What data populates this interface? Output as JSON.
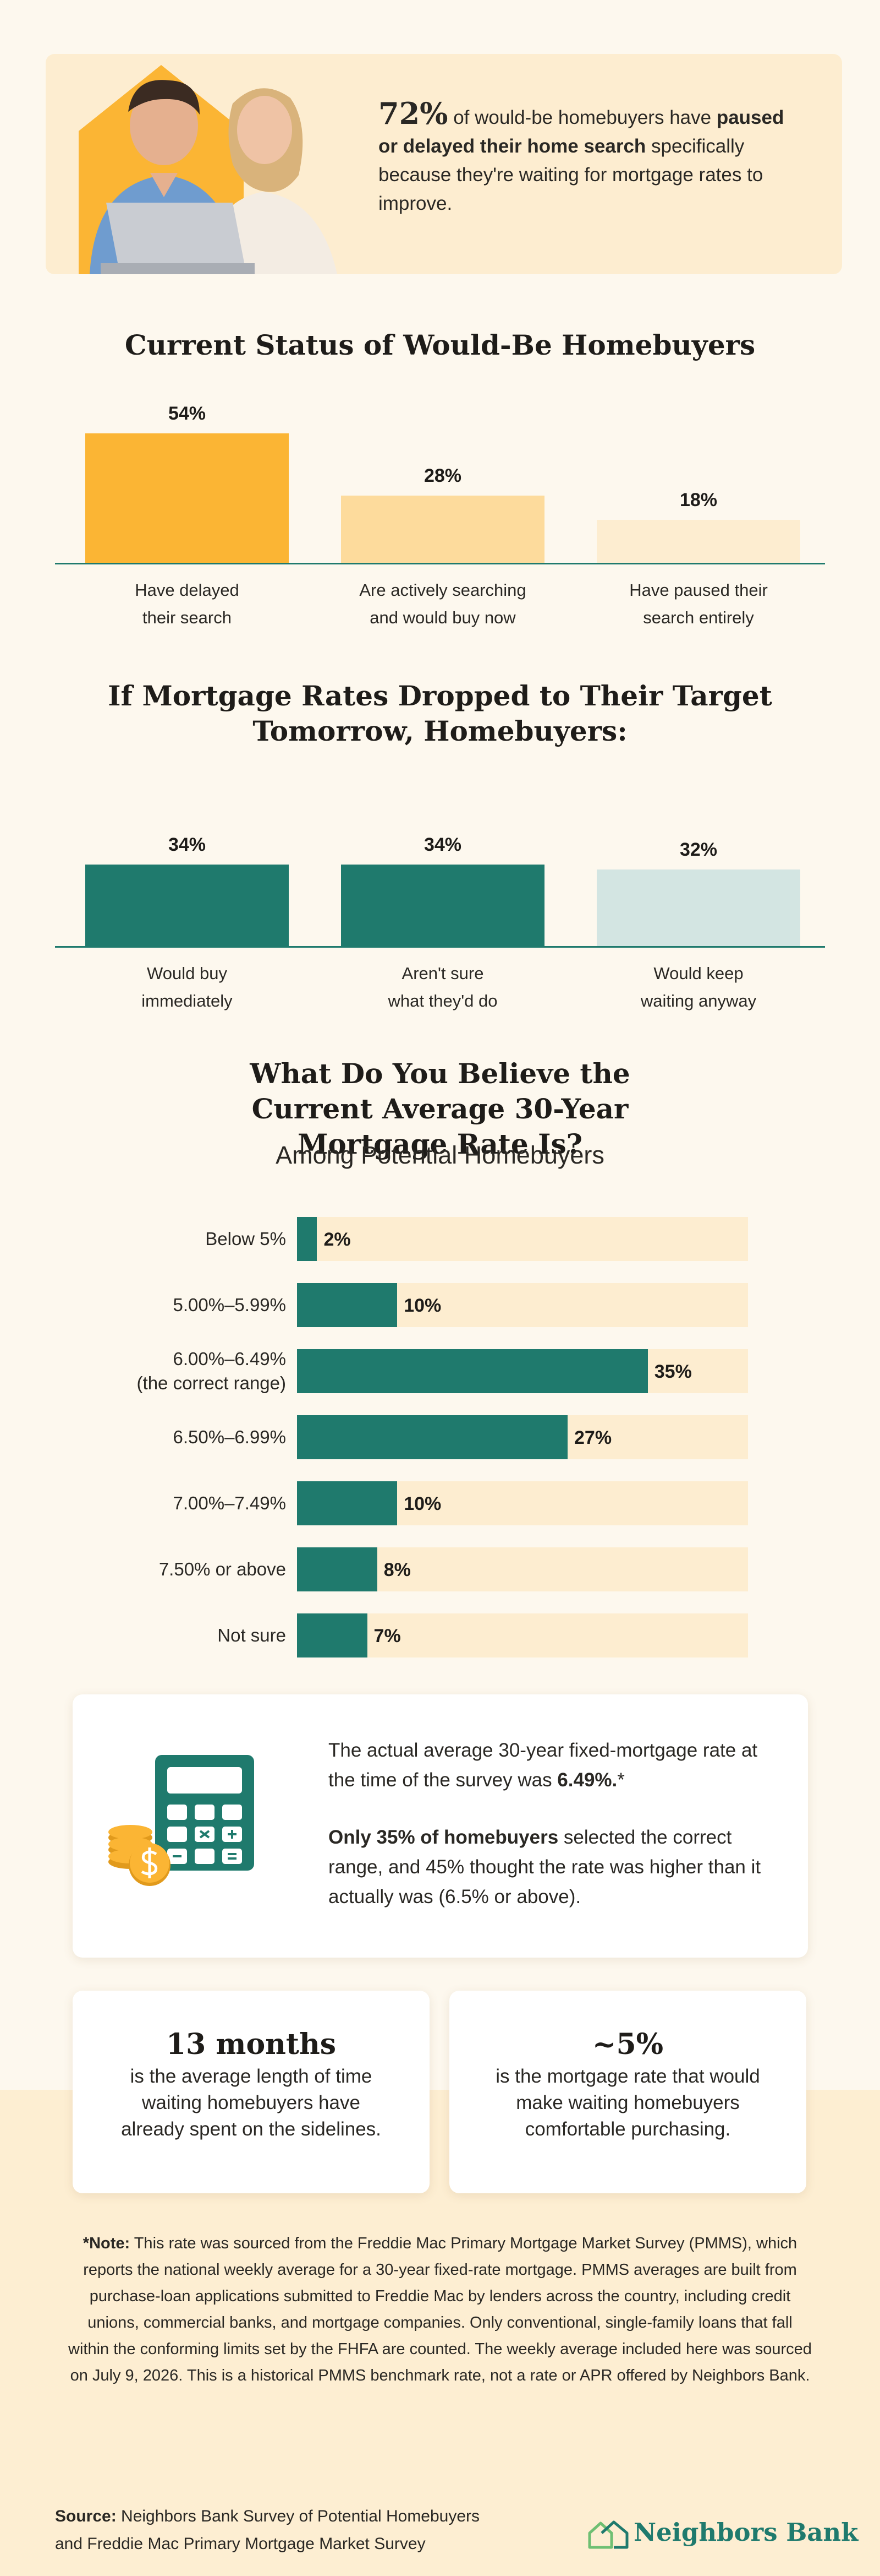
{
  "colors": {
    "teal": "#1f7a6d",
    "light_teal": "#d3e5e2",
    "gold": "#fbb534",
    "light_gold": "#fddb9c",
    "pale_gold": "#fdedd0",
    "background": "#fdf8ee"
  },
  "hero": {
    "stat": "72%",
    "text_1": " of would-be homebuyers have ",
    "text_bold": "paused or delayed their home search",
    "text_2": " specifically because they're waiting for mortgage rates to improve."
  },
  "chart_data": [
    {
      "type": "bar",
      "title": "Current Status of Would-Be Homebuyers",
      "unit": "%",
      "categories": [
        "Have delayed|their search",
        "Are actively searching|and would buy now",
        "Have paused their|search entirely"
      ],
      "values": [
        54,
        28,
        18
      ],
      "labels": [
        "54%",
        "28%",
        "18%"
      ],
      "colors": [
        "#fbb534",
        "#fddb9c",
        "#fdedd0"
      ]
    },
    {
      "type": "bar",
      "title": "If Mortgage Rates Dropped to Their Target Tomorrow, Homebuyers:",
      "unit": "%",
      "categories": [
        "Would buy|immediately",
        "Aren't sure|what they'd do",
        "Would keep|waiting anyway"
      ],
      "values": [
        34,
        34,
        32
      ],
      "labels": [
        "34%",
        "34%",
        "32%"
      ],
      "colors": [
        "#1f7a6d",
        "#1f7a6d",
        "#d3e5e2"
      ]
    },
    {
      "type": "bar",
      "orientation": "horizontal",
      "title": "What Do You Believe the Current Average 30-Year Mortgage Rate Is?",
      "subtitle": "Among Potential Homebuyers",
      "unit": "%",
      "xlim": [
        0,
        45
      ],
      "categories": [
        "Below 5%",
        "5.00%–5.99%",
        "6.00%–6.49%|(the correct range)",
        "6.50%–6.99%",
        "7.00%–7.49%",
        "7.50% or above",
        "Not sure"
      ],
      "values": [
        2,
        10,
        35,
        27,
        10,
        8,
        7
      ],
      "labels": [
        "2%",
        "10%",
        "35%",
        "27%",
        "10%",
        "8%",
        "7%"
      ]
    }
  ],
  "survey_note": {
    "line_1": "The actual average 30-year fixed-mortgage rate at the time of the survey was ",
    "rate": "6.49%.",
    "asterisk": "*",
    "bold_2": "Only 35% of homebuyers",
    "line_2": " selected the correct range, and 45% thought the rate was higher than it actually was (6.5% or above)."
  },
  "stats": [
    {
      "value": "13 months",
      "description": "is the average length of time waiting homebuyers have already spent on the sidelines."
    },
    {
      "value": "~5%",
      "description": "is the mortgage rate that would make waiting homebuyers comfortable purchasing."
    }
  ],
  "footnote": {
    "label": "*Note:",
    "text": " This rate was sourced from the Freddie Mac Primary Mortgage Market Survey (PMMS), which reports the national weekly average for a 30-year fixed-rate mortgage. PMMS averages are built from purchase-loan applications submitted to Freddie Mac by lenders across the country, including credit unions, commercial banks, and mortgage companies. Only conventional, single-family loans that fall within the conforming limits set by the FHFA are counted. The weekly average included here was sourced on July 9, 2026. This is a historical PMMS benchmark rate, not a rate or APR offered by Neighbors Bank."
  },
  "source": {
    "label": "Source:",
    "text_1": " Neighbors Bank Survey of Potential Homebuyers",
    "text_2": "and Freddie Mac Primary Mortgage Market Survey"
  },
  "brand": {
    "name": "Neighbors Bank",
    "logo_icon": "house-outline-icon"
  },
  "icons": {
    "hero": "couple-with-laptop-illustration",
    "calculator": "calculator-with-coins-icon"
  }
}
